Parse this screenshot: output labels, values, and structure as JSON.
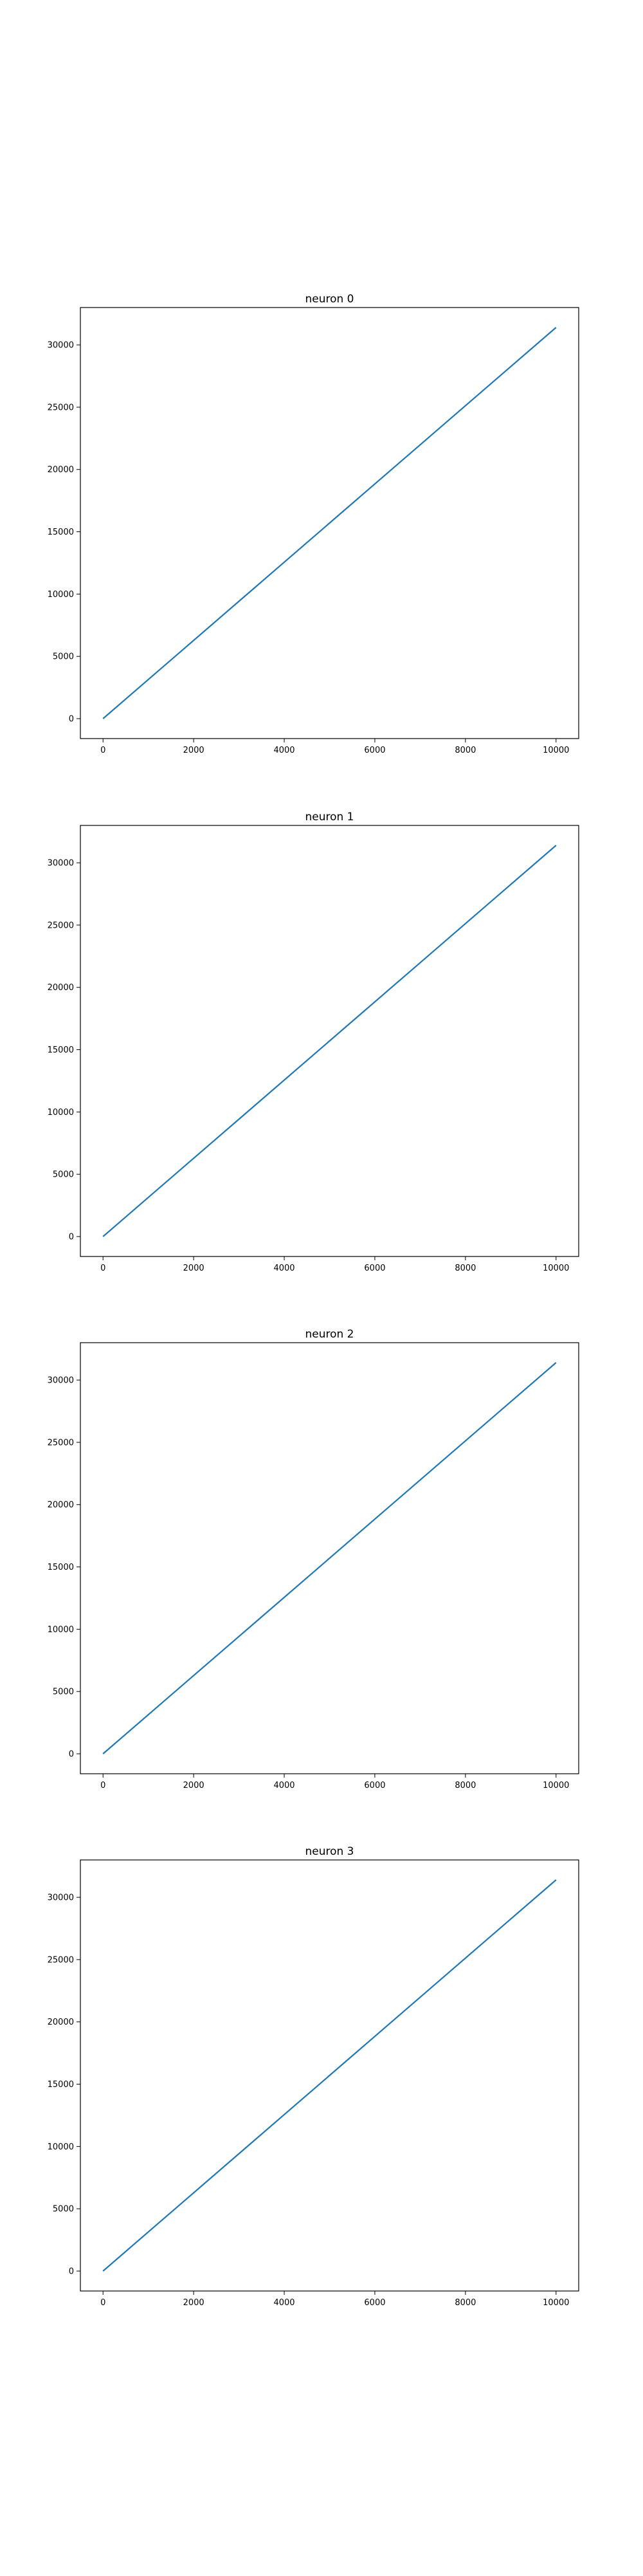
{
  "figure": {
    "background": "#ffffff"
  },
  "chart_data": [
    {
      "type": "line",
      "title": "neuron 0",
      "xlabel": "",
      "ylabel": "",
      "xlim": [
        -500,
        10500
      ],
      "ylim": [
        -1600,
        33000
      ],
      "xticks": [
        0,
        2000,
        4000,
        6000,
        8000,
        10000
      ],
      "yticks": [
        0,
        5000,
        10000,
        15000,
        20000,
        25000,
        30000
      ],
      "xtick_labels": [
        "0",
        "2000",
        "4000",
        "6000",
        "8000",
        "10000"
      ],
      "ytick_labels": [
        "0",
        "5000",
        "10000",
        "15000",
        "20000",
        "25000",
        "30000"
      ],
      "grid": false,
      "series": [
        {
          "color": "#1f77b4",
          "x": [
            0,
            10000
          ],
          "y": [
            0,
            31400
          ]
        }
      ]
    },
    {
      "type": "line",
      "title": "neuron 1",
      "xlabel": "",
      "ylabel": "",
      "xlim": [
        -500,
        10500
      ],
      "ylim": [
        -1600,
        33000
      ],
      "xticks": [
        0,
        2000,
        4000,
        6000,
        8000,
        10000
      ],
      "yticks": [
        0,
        5000,
        10000,
        15000,
        20000,
        25000,
        30000
      ],
      "xtick_labels": [
        "0",
        "2000",
        "4000",
        "6000",
        "8000",
        "10000"
      ],
      "ytick_labels": [
        "0",
        "5000",
        "10000",
        "15000",
        "20000",
        "25000",
        "30000"
      ],
      "grid": false,
      "series": [
        {
          "color": "#1f77b4",
          "x": [
            0,
            10000
          ],
          "y": [
            0,
            31400
          ]
        }
      ]
    },
    {
      "type": "line",
      "title": "neuron 2",
      "xlabel": "",
      "ylabel": "",
      "xlim": [
        -500,
        10500
      ],
      "ylim": [
        -1600,
        33000
      ],
      "xticks": [
        0,
        2000,
        4000,
        6000,
        8000,
        10000
      ],
      "yticks": [
        0,
        5000,
        10000,
        15000,
        20000,
        25000,
        30000
      ],
      "xtick_labels": [
        "0",
        "2000",
        "4000",
        "6000",
        "8000",
        "10000"
      ],
      "ytick_labels": [
        "0",
        "5000",
        "10000",
        "15000",
        "20000",
        "25000",
        "30000"
      ],
      "grid": false,
      "series": [
        {
          "color": "#1f77b4",
          "x": [
            0,
            10000
          ],
          "y": [
            0,
            31400
          ]
        }
      ]
    },
    {
      "type": "line",
      "title": "neuron 3",
      "xlabel": "",
      "ylabel": "",
      "xlim": [
        -500,
        10500
      ],
      "ylim": [
        -1600,
        33000
      ],
      "xticks": [
        0,
        2000,
        4000,
        6000,
        8000,
        10000
      ],
      "yticks": [
        0,
        5000,
        10000,
        15000,
        20000,
        25000,
        30000
      ],
      "xtick_labels": [
        "0",
        "2000",
        "4000",
        "6000",
        "8000",
        "10000"
      ],
      "ytick_labels": [
        "0",
        "5000",
        "10000",
        "15000",
        "20000",
        "25000",
        "30000"
      ],
      "grid": false,
      "series": [
        {
          "color": "#1f77b4",
          "x": [
            0,
            10000
          ],
          "y": [
            0,
            31400
          ]
        }
      ]
    }
  ]
}
